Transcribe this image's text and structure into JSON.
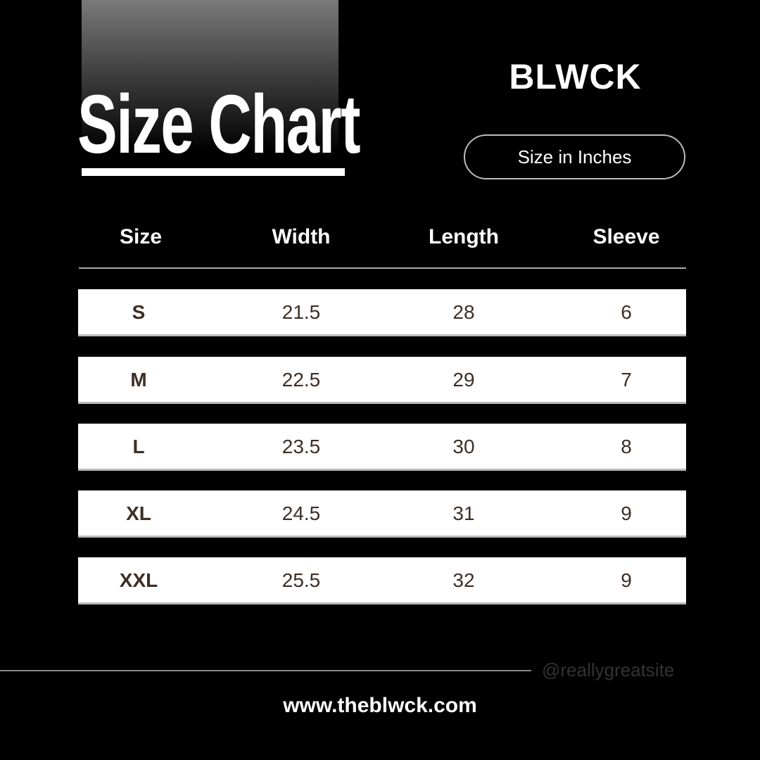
{
  "header": {
    "title": "Size Chart",
    "brand": "BLWCK",
    "unit_label": "Size in Inches"
  },
  "table": {
    "columns": [
      "Size",
      "Width",
      "Length",
      "Sleeve"
    ],
    "rows": [
      [
        "S",
        "21.5",
        "28",
        "6"
      ],
      [
        "M",
        "22.5",
        "29",
        "7"
      ],
      [
        "L",
        "23.5",
        "30",
        "8"
      ],
      [
        "XL",
        "24.5",
        "31",
        "9"
      ],
      [
        "XXL",
        "25.5",
        "32",
        "9"
      ]
    ]
  },
  "footer": {
    "handle": "@reallygreatsite",
    "website": "www.theblwck.com"
  }
}
